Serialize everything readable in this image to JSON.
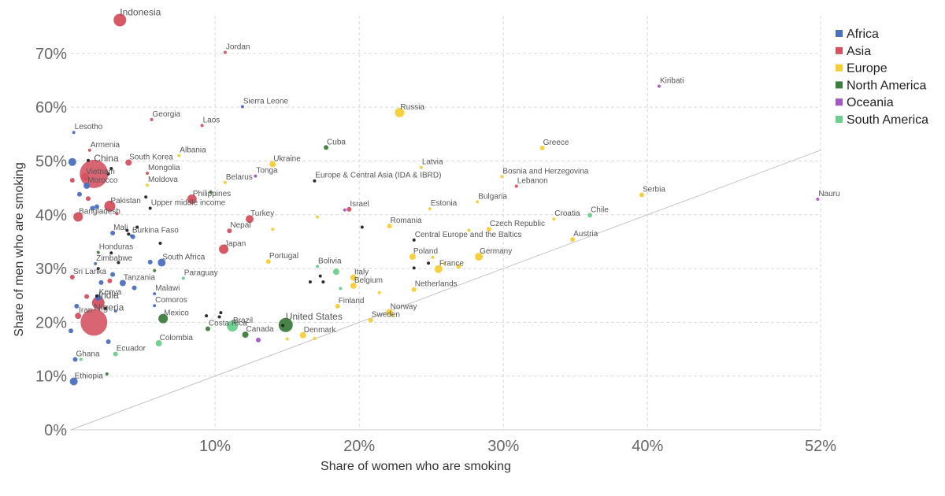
{
  "chart_data": {
    "type": "scatter",
    "xlabel": "Share of women who are smoking",
    "ylabel": "Share of men who are smoking",
    "xlim": [
      0,
      52
    ],
    "ylim": [
      0,
      77
    ],
    "x_ticks": [
      10,
      20,
      30,
      40,
      52
    ],
    "x_tick_labels": [
      "10%",
      "20%",
      "30%",
      "40%",
      "52%"
    ],
    "y_ticks": [
      0,
      10,
      20,
      30,
      40,
      50,
      60,
      70
    ],
    "y_tick_labels": [
      "0%",
      "10%",
      "20%",
      "30%",
      "40%",
      "50%",
      "60%",
      "70%"
    ],
    "grid": true,
    "reference_line": "y = x",
    "legend_position": "top-right",
    "series_colors": {
      "Africa": "#4c6fbf",
      "Asia": "#d5505e",
      "Europe": "#f7cd35",
      "North America": "#3e7d3e",
      "Oceania": "#a356c4",
      "South America": "#6bcf8c",
      "Other": "#222222"
    },
    "legend": [
      "Africa",
      "Asia",
      "Europe",
      "North America",
      "Oceania",
      "South America"
    ],
    "points": [
      {
        "label": "Indonesia",
        "region": "Asia",
        "x": 3.4,
        "y": 76.2,
        "r": 8
      },
      {
        "label": "Jordan",
        "region": "Asia",
        "x": 10.7,
        "y": 70.2,
        "r": 2
      },
      {
        "label": "Kiribati",
        "region": "Oceania",
        "x": 40.8,
        "y": 63.9,
        "r": 2
      },
      {
        "label": "Sierra Leone",
        "region": "Africa",
        "x": 11.9,
        "y": 60.1,
        "r": 2
      },
      {
        "label": "Russia",
        "region": "Europe",
        "x": 22.8,
        "y": 59.0,
        "r": 6
      },
      {
        "label": "Georgia",
        "region": "Asia",
        "x": 5.6,
        "y": 57.7,
        "r": 2
      },
      {
        "label": "Laos",
        "region": "Asia",
        "x": 9.1,
        "y": 56.6,
        "r": 2
      },
      {
        "label": "Lesotho",
        "region": "Africa",
        "x": 0.2,
        "y": 55.3,
        "r": 2
      },
      {
        "label": "Cuba",
        "region": "North America",
        "x": 17.7,
        "y": 52.5,
        "r": 3
      },
      {
        "label": "Greece",
        "region": "Europe",
        "x": 32.7,
        "y": 52.4,
        "r": 3
      },
      {
        "label": "Armenia",
        "region": "Asia",
        "x": 1.3,
        "y": 52.0,
        "r": 2
      },
      {
        "label": "Albania",
        "region": "Europe",
        "x": 7.5,
        "y": 51.0,
        "r": 2
      },
      {
        "label": "South Korea",
        "region": "Asia",
        "x": 4.0,
        "y": 49.7,
        "r": 4
      },
      {
        "label": "China",
        "region": "Asia",
        "x": 1.6,
        "y": 47.6,
        "r": 18
      },
      {
        "label": "Ukraine",
        "region": "Europe",
        "x": 14.0,
        "y": 49.4,
        "r": 4
      },
      {
        "label": "Latvia",
        "region": "Europe",
        "x": 24.3,
        "y": 48.8,
        "r": 2
      },
      {
        "label": "Mongolia",
        "region": "Asia",
        "x": 5.3,
        "y": 47.7,
        "r": 2
      },
      {
        "label": "Vietnam",
        "region": "Asia",
        "x": 1.0,
        "y": 47.0,
        "r": 5
      },
      {
        "label": "Tonga",
        "region": "Oceania",
        "x": 12.8,
        "y": 47.2,
        "r": 2
      },
      {
        "label": "Europe & Central Asia (IDA & IBRD)",
        "region": "Other",
        "x": 16.9,
        "y": 46.3,
        "r": 2
      },
      {
        "label": "Bosnia and Herzegovina",
        "region": "Europe",
        "x": 29.9,
        "y": 47.1,
        "r": 2
      },
      {
        "label": "Belarus",
        "region": "Europe",
        "x": 10.7,
        "y": 46.0,
        "r": 2
      },
      {
        "label": "Moldova",
        "region": "Europe",
        "x": 5.3,
        "y": 45.5,
        "r": 2
      },
      {
        "label": "Morocco",
        "region": "Africa",
        "x": 1.1,
        "y": 45.4,
        "r": 4
      },
      {
        "label": "Lebanon",
        "region": "Asia",
        "x": 30.9,
        "y": 45.3,
        "r": 2
      },
      {
        "label": "Philippines",
        "region": "Asia",
        "x": 8.4,
        "y": 42.9,
        "r": 6
      },
      {
        "label": "Serbia",
        "region": "Europe",
        "x": 39.6,
        "y": 43.7,
        "r": 3
      },
      {
        "label": "Nauru",
        "region": "Oceania",
        "x": 51.8,
        "y": 42.9,
        "r": 2
      },
      {
        "label": "Pakistan",
        "region": "Asia",
        "x": 2.7,
        "y": 41.6,
        "r": 7
      },
      {
        "label": "Upper middle income",
        "region": "Other",
        "x": 5.5,
        "y": 41.2,
        "r": 2
      },
      {
        "label": "Estonia",
        "region": "Europe",
        "x": 24.9,
        "y": 41.1,
        "r": 2
      },
      {
        "label": "Bulgaria",
        "region": "Europe",
        "x": 28.2,
        "y": 42.4,
        "r": 2
      },
      {
        "label": "Israel",
        "region": "Asia",
        "x": 19.3,
        "y": 41.0,
        "r": 3
      },
      {
        "label": "Bangladesh",
        "region": "Asia",
        "x": 0.5,
        "y": 39.6,
        "r": 6
      },
      {
        "label": "Turkey",
        "region": "Asia",
        "x": 12.4,
        "y": 39.2,
        "r": 5
      },
      {
        "label": "Chile",
        "region": "South America",
        "x": 36.0,
        "y": 39.9,
        "r": 3
      },
      {
        "label": "Croatia",
        "region": "Europe",
        "x": 33.5,
        "y": 39.2,
        "r": 2
      },
      {
        "label": "Romania",
        "region": "Europe",
        "x": 22.1,
        "y": 37.9,
        "r": 3
      },
      {
        "label": "Czech Republic",
        "region": "Europe",
        "x": 29.0,
        "y": 37.3,
        "r": 3
      },
      {
        "label": "Central Europe and the Baltics",
        "region": "Other",
        "x": 23.8,
        "y": 35.3,
        "r": 2
      },
      {
        "label": "Mali",
        "region": "Africa",
        "x": 2.9,
        "y": 36.6,
        "r": 3
      },
      {
        "label": "Burkina Faso",
        "region": "Africa",
        "x": 4.2,
        "y": 36.1,
        "r": 2
      },
      {
        "label": "Nepal",
        "region": "Asia",
        "x": 11.0,
        "y": 37.0,
        "r": 3
      },
      {
        "label": "Austria",
        "region": "Europe",
        "x": 34.8,
        "y": 35.4,
        "r": 3
      },
      {
        "label": "Japan",
        "region": "Asia",
        "x": 10.6,
        "y": 33.6,
        "r": 6
      },
      {
        "label": "Honduras",
        "region": "North America",
        "x": 1.9,
        "y": 33.0,
        "r": 2
      },
      {
        "label": "Poland",
        "region": "Europe",
        "x": 23.7,
        "y": 32.2,
        "r": 4
      },
      {
        "label": "Germany",
        "region": "Europe",
        "x": 28.3,
        "y": 32.2,
        "r": 5
      },
      {
        "label": "South Africa",
        "region": "Africa",
        "x": 6.3,
        "y": 31.1,
        "r": 5
      },
      {
        "label": "Portugal",
        "region": "Europe",
        "x": 13.7,
        "y": 31.3,
        "r": 3
      },
      {
        "label": "Zimbabwe",
        "region": "Africa",
        "x": 1.7,
        "y": 30.9,
        "r": 2
      },
      {
        "label": "Bolivia",
        "region": "South America",
        "x": 17.1,
        "y": 30.4,
        "r": 2
      },
      {
        "label": "France",
        "region": "Europe",
        "x": 25.5,
        "y": 29.9,
        "r": 5
      },
      {
        "label": "Sri Lanka",
        "region": "Asia",
        "x": 0.1,
        "y": 28.4,
        "r": 3
      },
      {
        "label": "Tanzania",
        "region": "Africa",
        "x": 3.6,
        "y": 27.3,
        "r": 4
      },
      {
        "label": "Paraguay",
        "region": "South America",
        "x": 7.8,
        "y": 28.2,
        "r": 2
      },
      {
        "label": "Italy",
        "region": "Europe",
        "x": 19.6,
        "y": 28.3,
        "r": 4
      },
      {
        "label": "Belgium",
        "region": "Europe",
        "x": 19.6,
        "y": 26.8,
        "r": 4
      },
      {
        "label": "Netherlands",
        "region": "Europe",
        "x": 23.8,
        "y": 26.1,
        "r": 3
      },
      {
        "label": "Malawi",
        "region": "Africa",
        "x": 5.8,
        "y": 25.3,
        "r": 2
      },
      {
        "label": "Kenya",
        "region": "Africa",
        "x": 1.9,
        "y": 24.6,
        "r": 4
      },
      {
        "label": "India",
        "region": "Asia",
        "x": 1.9,
        "y": 23.6,
        "r": 8
      },
      {
        "label": "Comoros",
        "region": "Africa",
        "x": 5.8,
        "y": 23.1,
        "r": 2
      },
      {
        "label": "Finland",
        "region": "Europe",
        "x": 18.5,
        "y": 23.0,
        "r": 3
      },
      {
        "label": "Norway",
        "region": "Europe",
        "x": 22.1,
        "y": 21.9,
        "r": 4
      },
      {
        "label": "Iran",
        "region": "Asia",
        "x": 0.5,
        "y": 21.2,
        "r": 4
      },
      {
        "label": "Mexico",
        "region": "North America",
        "x": 6.4,
        "y": 20.7,
        "r": 6
      },
      {
        "label": "United States",
        "region": "North America",
        "x": 14.9,
        "y": 19.5,
        "r": 9
      },
      {
        "label": "Sweden",
        "region": "Europe",
        "x": 20.8,
        "y": 20.4,
        "r": 3
      },
      {
        "label": "Nigeria",
        "region": "Asia",
        "x": 1.6,
        "y": 20.0,
        "r": 17
      },
      {
        "label": "Brazil",
        "region": "South America",
        "x": 11.2,
        "y": 19.3,
        "r": 7
      },
      {
        "label": "Costa Rica",
        "region": "North America",
        "x": 9.5,
        "y": 18.8,
        "r": 3
      },
      {
        "label": "Canada",
        "region": "North America",
        "x": 12.1,
        "y": 17.7,
        "r": 4
      },
      {
        "label": "Denmark",
        "region": "Europe",
        "x": 16.1,
        "y": 17.6,
        "r": 4
      },
      {
        "label": "Colombia",
        "region": "South America",
        "x": 6.1,
        "y": 16.1,
        "r": 4
      },
      {
        "label": "Ecuador",
        "region": "South America",
        "x": 3.1,
        "y": 14.1,
        "r": 3
      },
      {
        "label": "Ghana",
        "region": "Africa",
        "x": 0.3,
        "y": 13.1,
        "r": 3
      },
      {
        "label": "Ethiopia",
        "region": "Africa",
        "x": 0.2,
        "y": 9.0,
        "r": 5
      },
      {
        "label": "",
        "region": "Africa",
        "x": 0.1,
        "y": 49.8,
        "r": 5
      },
      {
        "label": "",
        "region": "Asia",
        "x": 0.1,
        "y": 46.4,
        "r": 3
      },
      {
        "label": "",
        "region": "Africa",
        "x": 0.6,
        "y": 43.8,
        "r": 3
      },
      {
        "label": "",
        "region": "Asia",
        "x": 1.2,
        "y": 43.0,
        "r": 3
      },
      {
        "label": "",
        "region": "Asia",
        "x": 3.2,
        "y": 40.2,
        "r": 2
      },
      {
        "label": "",
        "region": "Africa",
        "x": 1.5,
        "y": 41.2,
        "r": 3
      },
      {
        "label": "",
        "region": "Africa",
        "x": 1.8,
        "y": 41.5,
        "r": 3
      },
      {
        "label": "",
        "region": "Africa",
        "x": 4.3,
        "y": 35.9,
        "r": 3
      },
      {
        "label": "",
        "region": "Africa",
        "x": 5.5,
        "y": 31.2,
        "r": 3
      },
      {
        "label": "",
        "region": "Africa",
        "x": 2.9,
        "y": 28.9,
        "r": 3
      },
      {
        "label": "",
        "region": "Asia",
        "x": 2.7,
        "y": 27.7,
        "r": 3
      },
      {
        "label": "",
        "region": "Africa",
        "x": 2.1,
        "y": 27.4,
        "r": 3
      },
      {
        "label": "",
        "region": "Asia",
        "x": 1.1,
        "y": 24.8,
        "r": 3
      },
      {
        "label": "",
        "region": "Africa",
        "x": 0.4,
        "y": 23.0,
        "r": 3
      },
      {
        "label": "",
        "region": "Africa",
        "x": 3.1,
        "y": 22.1,
        "r": 2
      },
      {
        "label": "",
        "region": "Africa",
        "x": 0.0,
        "y": 18.4,
        "r": 3
      },
      {
        "label": "",
        "region": "Africa",
        "x": 2.6,
        "y": 16.4,
        "r": 3
      },
      {
        "label": "",
        "region": "Africa",
        "x": 4.4,
        "y": 26.4,
        "r": 3
      },
      {
        "label": "",
        "region": "North America",
        "x": 2.5,
        "y": 10.4,
        "r": 2
      },
      {
        "label": "",
        "region": "South America",
        "x": 0.7,
        "y": 13.1,
        "r": 2
      },
      {
        "label": "",
        "region": "North America",
        "x": 5.8,
        "y": 29.6,
        "r": 2
      },
      {
        "label": "",
        "region": "North America",
        "x": 9.7,
        "y": 44.2,
        "r": 2
      },
      {
        "label": "",
        "region": "Europe",
        "x": 16.9,
        "y": 17.0,
        "r": 2
      },
      {
        "label": "",
        "region": "Europe",
        "x": 15.0,
        "y": 16.9,
        "r": 2
      },
      {
        "label": "",
        "region": "Europe",
        "x": 17.1,
        "y": 39.6,
        "r": 2
      },
      {
        "label": "",
        "region": "Europe",
        "x": 27.6,
        "y": 37.1,
        "r": 2
      },
      {
        "label": "",
        "region": "Europe",
        "x": 25.1,
        "y": 32.1,
        "r": 2
      },
      {
        "label": "",
        "region": "Europe",
        "x": 26.9,
        "y": 30.4,
        "r": 3
      },
      {
        "label": "",
        "region": "Europe",
        "x": 25.9,
        "y": 30.9,
        "r": 2
      },
      {
        "label": "",
        "region": "Europe",
        "x": 21.4,
        "y": 25.5,
        "r": 2
      },
      {
        "label": "",
        "region": "Europe",
        "x": 22.3,
        "y": 21.3,
        "r": 2
      },
      {
        "label": "",
        "region": "Europe",
        "x": 14.0,
        "y": 37.3,
        "r": 2
      },
      {
        "label": "",
        "region": "South America",
        "x": 18.7,
        "y": 26.3,
        "r": 2
      },
      {
        "label": "",
        "region": "South America",
        "x": 18.4,
        "y": 29.4,
        "r": 4
      },
      {
        "label": "",
        "region": "Oceania",
        "x": 19.0,
        "y": 40.9,
        "r": 2
      },
      {
        "label": "",
        "region": "Oceania",
        "x": 13.0,
        "y": 16.7,
        "r": 3
      },
      {
        "label": "",
        "region": "Other",
        "x": 1.2,
        "y": 50.1,
        "r": 2
      },
      {
        "label": "",
        "region": "Other",
        "x": 2.8,
        "y": 48.6,
        "r": 2
      },
      {
        "label": "",
        "region": "Other",
        "x": 2.6,
        "y": 47.6,
        "r": 2
      },
      {
        "label": "",
        "region": "Other",
        "x": 5.2,
        "y": 43.3,
        "r": 2
      },
      {
        "label": "",
        "region": "Other",
        "x": 4.6,
        "y": 37.7,
        "r": 2
      },
      {
        "label": "",
        "region": "Other",
        "x": 3.9,
        "y": 37.1,
        "r": 2
      },
      {
        "label": "",
        "region": "Other",
        "x": 4.0,
        "y": 36.4,
        "r": 2
      },
      {
        "label": "",
        "region": "Other",
        "x": 6.2,
        "y": 34.7,
        "r": 2
      },
      {
        "label": "",
        "region": "Other",
        "x": 2.8,
        "y": 32.9,
        "r": 2
      },
      {
        "label": "",
        "region": "Other",
        "x": 3.3,
        "y": 31.1,
        "r": 2
      },
      {
        "label": "",
        "region": "Other",
        "x": 1.9,
        "y": 30.0,
        "r": 2
      },
      {
        "label": "",
        "region": "Other",
        "x": 1.8,
        "y": 24.9,
        "r": 2
      },
      {
        "label": "",
        "region": "Other",
        "x": 2.4,
        "y": 22.6,
        "r": 2
      },
      {
        "label": "",
        "region": "Other",
        "x": 9.4,
        "y": 21.2,
        "r": 2
      },
      {
        "label": "",
        "region": "Other",
        "x": 10.3,
        "y": 21.0,
        "r": 2
      },
      {
        "label": "",
        "region": "Other",
        "x": 10.4,
        "y": 21.8,
        "r": 2
      },
      {
        "label": "",
        "region": "Other",
        "x": 14.7,
        "y": 19.4,
        "r": 2
      },
      {
        "label": "",
        "region": "Other",
        "x": 16.6,
        "y": 27.5,
        "r": 2
      },
      {
        "label": "",
        "region": "Other",
        "x": 17.3,
        "y": 28.6,
        "r": 2
      },
      {
        "label": "",
        "region": "Other",
        "x": 17.5,
        "y": 27.5,
        "r": 2
      },
      {
        "label": "",
        "region": "Other",
        "x": 20.2,
        "y": 37.7,
        "r": 2
      },
      {
        "label": "",
        "region": "Other",
        "x": 23.8,
        "y": 30.1,
        "r": 2
      },
      {
        "label": "",
        "region": "Other",
        "x": 24.8,
        "y": 31.0,
        "r": 2
      }
    ]
  }
}
